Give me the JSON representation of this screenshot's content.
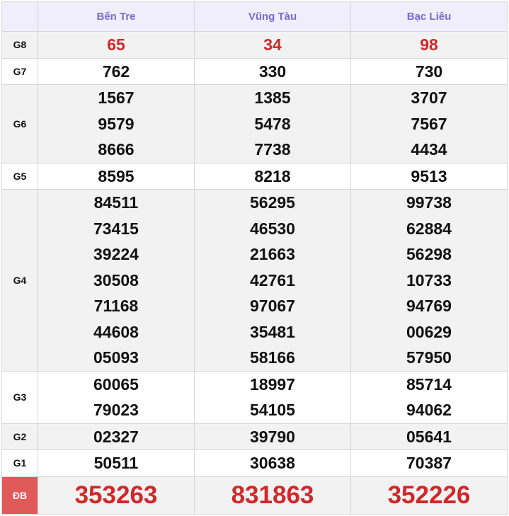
{
  "header": {
    "provinces": [
      "Bến Tre",
      "Vũng Tàu",
      "Bạc Liêu"
    ]
  },
  "rows": [
    {
      "label": "G8",
      "values": [
        [
          "65"
        ],
        [
          "34"
        ],
        [
          "98"
        ]
      ]
    },
    {
      "label": "G7",
      "values": [
        [
          "762"
        ],
        [
          "330"
        ],
        [
          "730"
        ]
      ]
    },
    {
      "label": "G6",
      "values": [
        [
          "1567",
          "9579",
          "8666"
        ],
        [
          "1385",
          "5478",
          "7738"
        ],
        [
          "3707",
          "7567",
          "4434"
        ]
      ]
    },
    {
      "label": "G5",
      "values": [
        [
          "8595"
        ],
        [
          "8218"
        ],
        [
          "9513"
        ]
      ]
    },
    {
      "label": "G4",
      "values": [
        [
          "84511",
          "73415",
          "39224",
          "30508",
          "71168",
          "44608",
          "05093"
        ],
        [
          "56295",
          "46530",
          "21663",
          "42761",
          "97067",
          "35481",
          "58166"
        ],
        [
          "99738",
          "62884",
          "56298",
          "10733",
          "94769",
          "00629",
          "57950"
        ]
      ]
    },
    {
      "label": "G3",
      "values": [
        [
          "60065",
          "79023"
        ],
        [
          "18997",
          "54105"
        ],
        [
          "85714",
          "94062"
        ]
      ]
    },
    {
      "label": "G2",
      "values": [
        [
          "02327"
        ],
        [
          "39790"
        ],
        [
          "05641"
        ]
      ]
    },
    {
      "label": "G1",
      "values": [
        [
          "50511"
        ],
        [
          "30638"
        ],
        [
          "70387"
        ]
      ]
    },
    {
      "label": "ĐB",
      "values": [
        [
          "353263"
        ],
        [
          "831863"
        ],
        [
          "352226"
        ]
      ]
    }
  ],
  "colors": {
    "header_text": "#7a68d8",
    "highlight": "#d0282a",
    "special_label_bg": "#e05a5a"
  }
}
